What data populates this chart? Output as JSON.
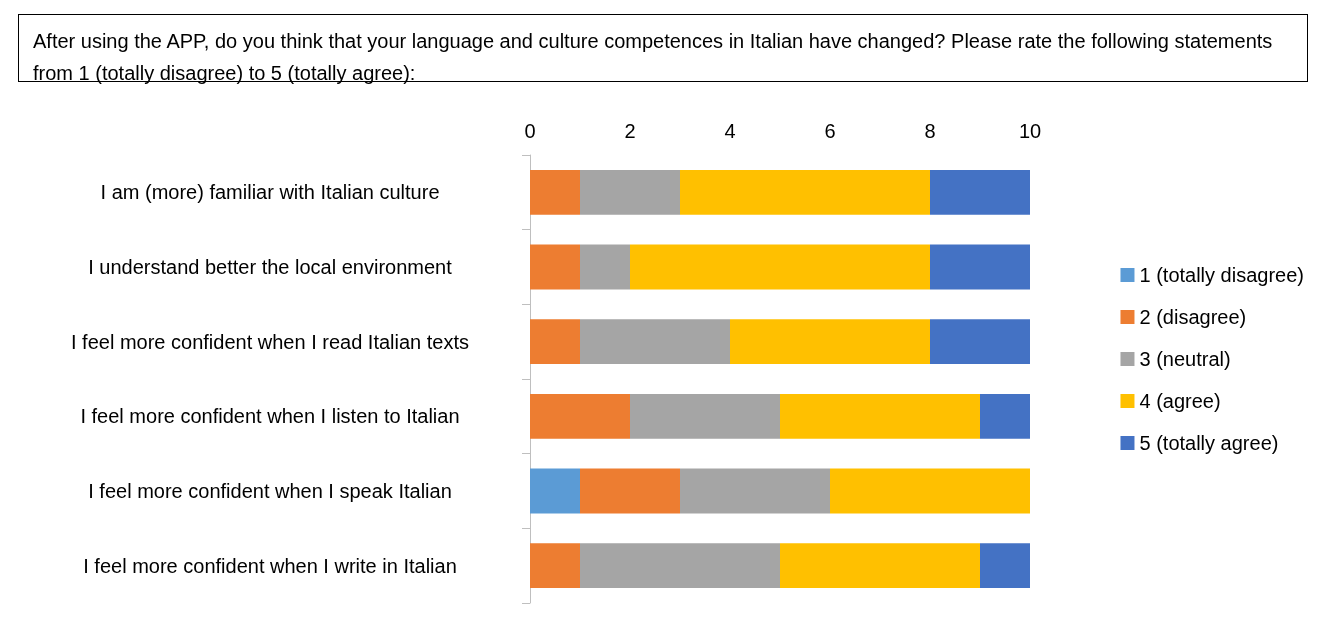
{
  "chart_data": {
    "type": "bar",
    "title": "After using the APP, do you think that your language and culture competences in Italian have changed? Please rate the following statements from 1 (totally disagree) to 5 (totally agree):",
    "categories": [
      "I am (more) familiar with Italian culture",
      "I understand better the local environment",
      "I feel more confident when I read Italian texts",
      "I feel more confident when I listen to Italian",
      "I feel more confident when I speak Italian",
      "I feel more confident when I write in Italian"
    ],
    "series": [
      {
        "name": "1 (totally disagree)",
        "color": "#5b9bd5",
        "values": [
          0,
          0,
          0,
          0,
          1,
          0
        ]
      },
      {
        "name": "2 (disagree)",
        "color": "#ed7d31",
        "values": [
          1,
          1,
          1,
          2,
          2,
          1
        ]
      },
      {
        "name": "3 (neutral)",
        "color": "#a5a5a5",
        "values": [
          2,
          1,
          3,
          3,
          3,
          4
        ]
      },
      {
        "name": "4 (agree)",
        "color": "#ffc000",
        "values": [
          5,
          6,
          4,
          4,
          4,
          4
        ]
      },
      {
        "name": "5 (totally agree)",
        "color": "#4472c4",
        "values": [
          2,
          2,
          2,
          1,
          0,
          1
        ]
      }
    ],
    "stacked": true,
    "orientation": "horizontal",
    "xlim": [
      0,
      10
    ],
    "xticks": [
      0,
      2,
      4,
      6,
      8,
      10
    ],
    "grid": false,
    "legend": "right"
  }
}
